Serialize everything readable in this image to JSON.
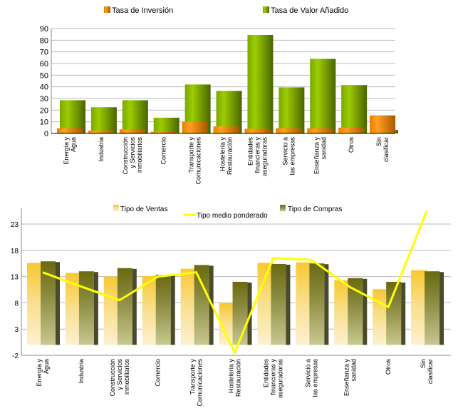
{
  "chart_data": [
    {
      "type": "bar",
      "legend": [
        "Tasa de Inversión",
        "Tasa de Valor Añadido"
      ],
      "legend_placement": "top",
      "categories": [
        "Energía y Agua",
        "Industria",
        "Construcción y Servicios inmobiliarios",
        "Comercio",
        "Transporte y Comunicaciones",
        "Hostelería y Restauración",
        "Entidades financieras y aseguradoras",
        "Servicio a las empresas",
        "Enseñanza y sanidad",
        "Otros",
        "Sin clasificar"
      ],
      "series": [
        {
          "name": "Tasa de Inversión",
          "color": "#f08c00",
          "values": [
            4.5,
            2.5,
            3.5,
            1.5,
            10,
            6,
            4,
            4.5,
            4.5,
            5,
            15.5
          ]
        },
        {
          "name": "Tasa de Valor Añadido",
          "color": "#8cc000",
          "values": [
            28.5,
            22.5,
            28.5,
            13.5,
            42,
            36.5,
            84.5,
            39.5,
            64,
            41.5,
            3
          ]
        }
      ],
      "ylim": [
        0,
        90
      ],
      "yticks": [
        0,
        10,
        20,
        30,
        40,
        50,
        60,
        70,
        80,
        90
      ],
      "grid": true
    },
    {
      "type": "bar",
      "legend": [
        "Tipo de Ventas",
        "Tipo de Compras",
        "Tipo medio ponderado"
      ],
      "legend_placement": "top",
      "categories": [
        "Energía y Agua",
        "Industria",
        "Construcción y Servicios inmobiliarios",
        "Comercio",
        "Transporte y Comunicaciones",
        "Hostelería y Restauración",
        "Entidades financieras y aseguradoras",
        "Servicio a las empresas",
        "Enseñanza y sanidad",
        "Otros",
        "Sin clasificar"
      ],
      "series": [
        {
          "name": "Tipo de Ventas",
          "color": "#f8c830",
          "values": [
            15.6,
            13.7,
            13,
            13.1,
            14.5,
            8,
            15.6,
            15.7,
            12.3,
            10.6,
            14.2
          ]
        },
        {
          "name": "Tipo de Compras",
          "color": "#7a7a20",
          "values": [
            15.9,
            14,
            14.6,
            13.3,
            15.2,
            12,
            15.4,
            15.5,
            12.7,
            12,
            14
          ]
        },
        {
          "name": "Tipo medio ponderado",
          "type": "line",
          "color": "#ffff00",
          "values": [
            13.8,
            11.1,
            8.5,
            13,
            13.8,
            -1.5,
            16.5,
            16.2,
            11,
            7.2,
            25.5
          ]
        }
      ],
      "ylim": [
        -2,
        25.5
      ],
      "yticks": [
        -2,
        3,
        8,
        13,
        18,
        23
      ],
      "grid": true
    }
  ]
}
